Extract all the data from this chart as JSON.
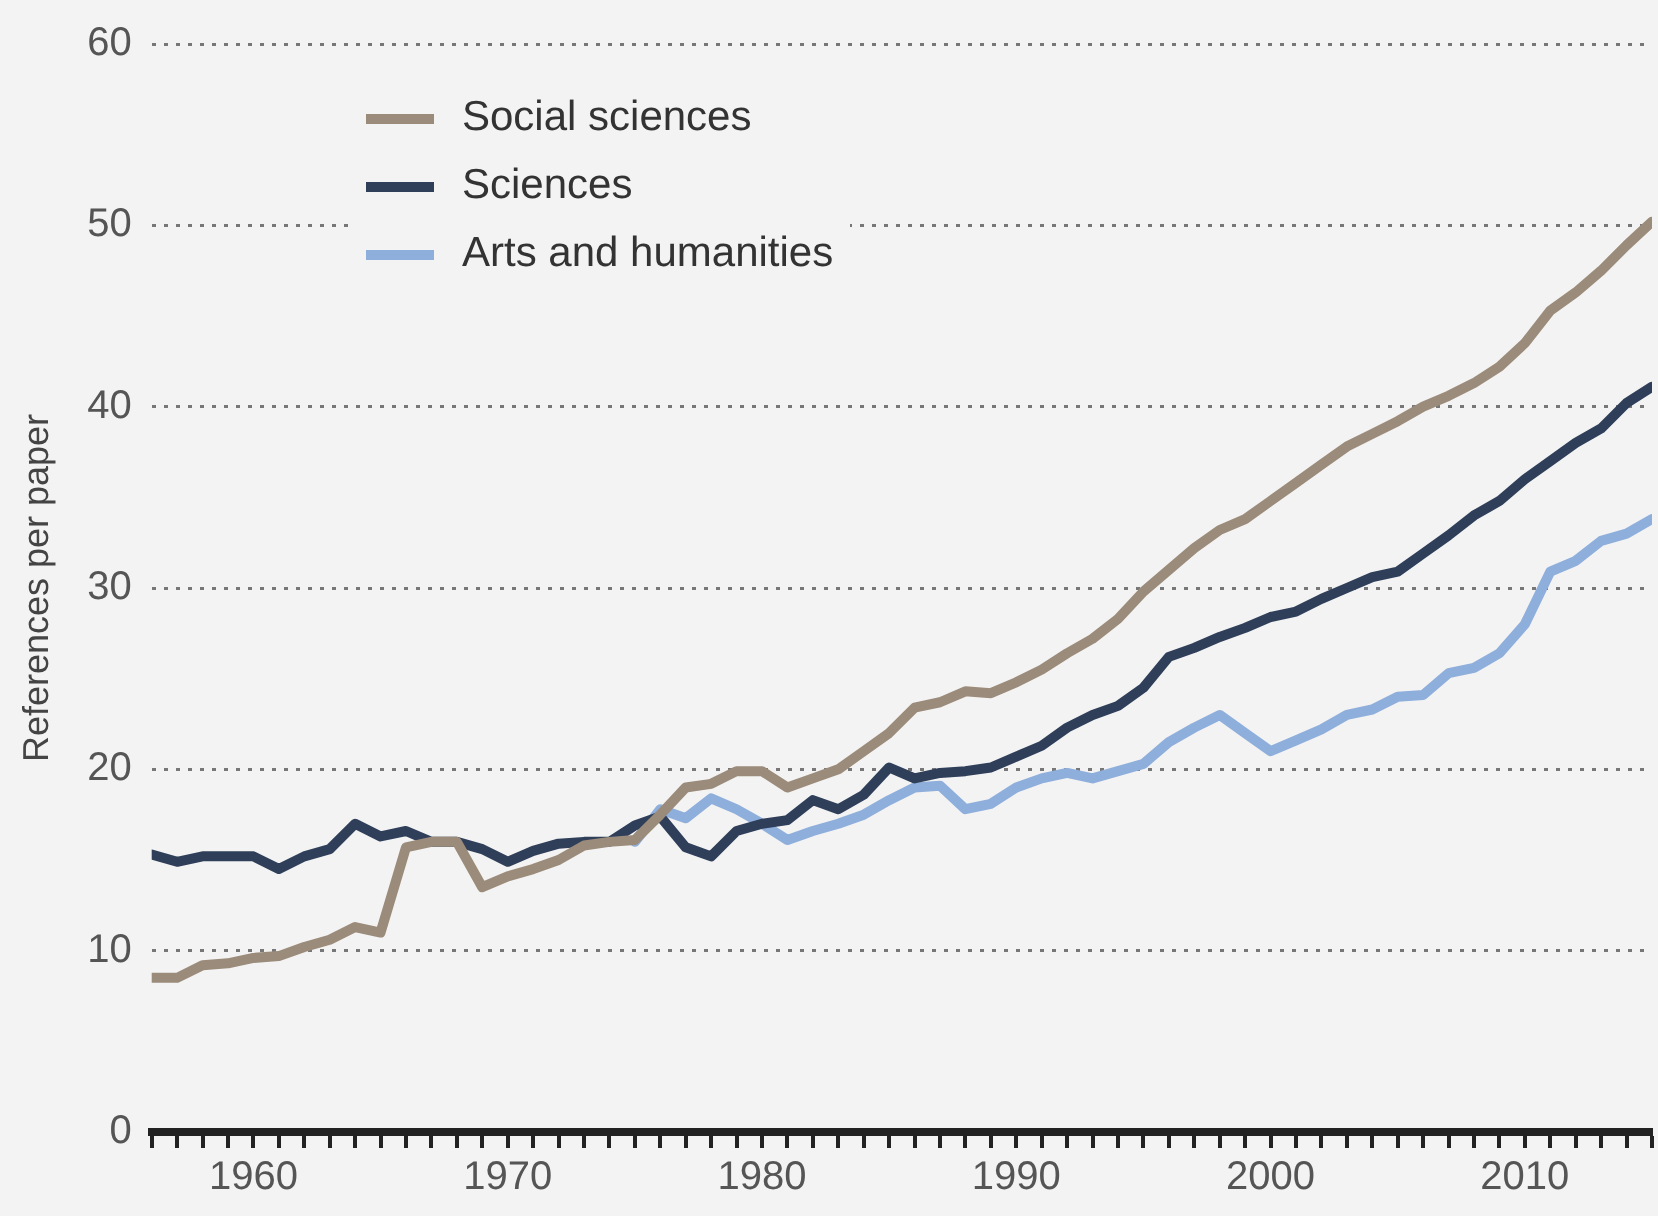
{
  "chart_data": {
    "type": "line",
    "ylabel": "References per paper",
    "x": [
      1956,
      1957,
      1958,
      1959,
      1960,
      1961,
      1962,
      1963,
      1964,
      1965,
      1966,
      1967,
      1968,
      1969,
      1970,
      1971,
      1972,
      1973,
      1974,
      1975,
      1976,
      1977,
      1978,
      1979,
      1980,
      1981,
      1982,
      1983,
      1984,
      1985,
      1986,
      1987,
      1988,
      1989,
      1990,
      1991,
      1992,
      1993,
      1994,
      1995,
      1996,
      1997,
      1998,
      1999,
      2000,
      2001,
      2002,
      2003,
      2004,
      2005,
      2006,
      2007,
      2008,
      2009,
      2010,
      2011,
      2012,
      2013,
      2014,
      2015
    ],
    "series": [
      {
        "name": "Social sciences",
        "color": "#9b8b7a",
        "values": [
          8.5,
          8.5,
          9.2,
          9.3,
          9.6,
          9.7,
          10.2,
          10.6,
          11.3,
          11.0,
          15.7,
          16.0,
          16.0,
          13.5,
          14.1,
          14.5,
          15.0,
          15.8,
          16.0,
          16.1,
          17.5,
          19.0,
          19.2,
          19.9,
          19.9,
          19.0,
          19.5,
          20.0,
          21.0,
          22.0,
          23.4,
          23.7,
          24.3,
          24.2,
          24.8,
          25.5,
          26.4,
          27.2,
          28.3,
          29.8,
          31.0,
          32.2,
          33.2,
          33.8,
          34.8,
          35.8,
          36.8,
          37.8,
          38.5,
          39.2,
          40.0,
          40.6,
          41.3,
          42.2,
          43.5,
          45.3,
          46.3,
          47.5,
          48.9,
          50.2
        ]
      },
      {
        "name": "Sciences",
        "color": "#2f3f5a",
        "values": [
          15.3,
          14.9,
          15.2,
          15.2,
          15.2,
          14.5,
          15.2,
          15.6,
          17.0,
          16.3,
          16.6,
          16.0,
          16.0,
          15.6,
          14.9,
          15.5,
          15.9,
          16.0,
          16.0,
          16.9,
          17.4,
          15.7,
          15.2,
          16.6,
          17.0,
          17.2,
          18.3,
          17.8,
          18.6,
          20.1,
          19.5,
          19.8,
          19.9,
          20.1,
          20.7,
          21.3,
          22.3,
          23.0,
          23.5,
          24.5,
          26.2,
          26.7,
          27.3,
          27.8,
          28.4,
          28.7,
          29.4,
          30.0,
          30.6,
          30.9,
          31.9,
          32.9,
          34.0,
          34.8,
          36.0,
          37.0,
          38.0,
          38.8,
          40.2,
          41.1
        ]
      },
      {
        "name": "Arts and humanities",
        "color": "#8eaedb",
        "values": [
          null,
          null,
          null,
          null,
          null,
          null,
          null,
          null,
          null,
          null,
          null,
          null,
          null,
          null,
          null,
          null,
          null,
          null,
          null,
          16.0,
          17.8,
          17.3,
          18.4,
          17.8,
          17.0,
          16.1,
          16.6,
          17.0,
          17.5,
          18.3,
          19.0,
          19.1,
          17.8,
          18.1,
          19.0,
          19.5,
          19.8,
          19.5,
          19.9,
          20.3,
          21.5,
          22.3,
          23.0,
          22.0,
          21.0,
          21.6,
          22.2,
          23.0,
          23.3,
          24.0,
          24.1,
          25.3,
          25.6,
          26.4,
          28.0,
          30.9,
          31.5,
          32.6,
          33.0,
          33.8
        ]
      }
    ],
    "xlim": [
      1956,
      2015
    ],
    "xticks": [
      {
        "value": 1956,
        "label": null
      },
      {
        "value": 1957,
        "label": null
      },
      {
        "value": 1958,
        "label": null
      },
      {
        "value": 1959,
        "label": null
      },
      1960,
      {
        "value": 1961,
        "label": null
      },
      {
        "value": 1962,
        "label": null
      },
      {
        "value": 1963,
        "label": null
      },
      {
        "value": 1964,
        "label": null
      },
      {
        "value": 1965,
        "label": null
      },
      {
        "value": 1966,
        "label": null
      },
      {
        "value": 1967,
        "label": null
      },
      {
        "value": 1968,
        "label": null
      },
      {
        "value": 1969,
        "label": null
      },
      1970,
      {
        "value": 1971,
        "label": null
      },
      {
        "value": 1972,
        "label": null
      },
      {
        "value": 1973,
        "label": null
      },
      {
        "value": 1974,
        "label": null
      },
      {
        "value": 1975,
        "label": null
      },
      {
        "value": 1976,
        "label": null
      },
      {
        "value": 1977,
        "label": null
      },
      {
        "value": 1978,
        "label": null
      },
      {
        "value": 1979,
        "label": null
      },
      1980,
      {
        "value": 1981,
        "label": null
      },
      {
        "value": 1982,
        "label": null
      },
      {
        "value": 1983,
        "label": null
      },
      {
        "value": 1984,
        "label": null
      },
      {
        "value": 1985,
        "label": null
      },
      {
        "value": 1986,
        "label": null
      },
      {
        "value": 1987,
        "label": null
      },
      {
        "value": 1988,
        "label": null
      },
      {
        "value": 1989,
        "label": null
      },
      1990,
      {
        "value": 1991,
        "label": null
      },
      {
        "value": 1992,
        "label": null
      },
      {
        "value": 1993,
        "label": null
      },
      {
        "value": 1994,
        "label": null
      },
      {
        "value": 1995,
        "label": null
      },
      {
        "value": 1996,
        "label": null
      },
      {
        "value": 1997,
        "label": null
      },
      {
        "value": 1998,
        "label": null
      },
      {
        "value": 1999,
        "label": null
      },
      2000,
      {
        "value": 2001,
        "label": null
      },
      {
        "value": 2002,
        "label": null
      },
      {
        "value": 2003,
        "label": null
      },
      {
        "value": 2004,
        "label": null
      },
      {
        "value": 2005,
        "label": null
      },
      {
        "value": 2006,
        "label": null
      },
      {
        "value": 2007,
        "label": null
      },
      {
        "value": 2008,
        "label": null
      },
      {
        "value": 2009,
        "label": null
      },
      2010,
      {
        "value": 2011,
        "label": null
      },
      {
        "value": 2012,
        "label": null
      },
      {
        "value": 2013,
        "label": null
      },
      {
        "value": 2014,
        "label": null
      },
      {
        "value": 2015,
        "label": null
      }
    ],
    "ylim": [
      0,
      60
    ],
    "yticks": [
      0,
      10,
      20,
      30,
      40,
      50,
      60
    ],
    "grid": "y",
    "legend": "top left",
    "marker": "none",
    "line_style": "solid"
  }
}
